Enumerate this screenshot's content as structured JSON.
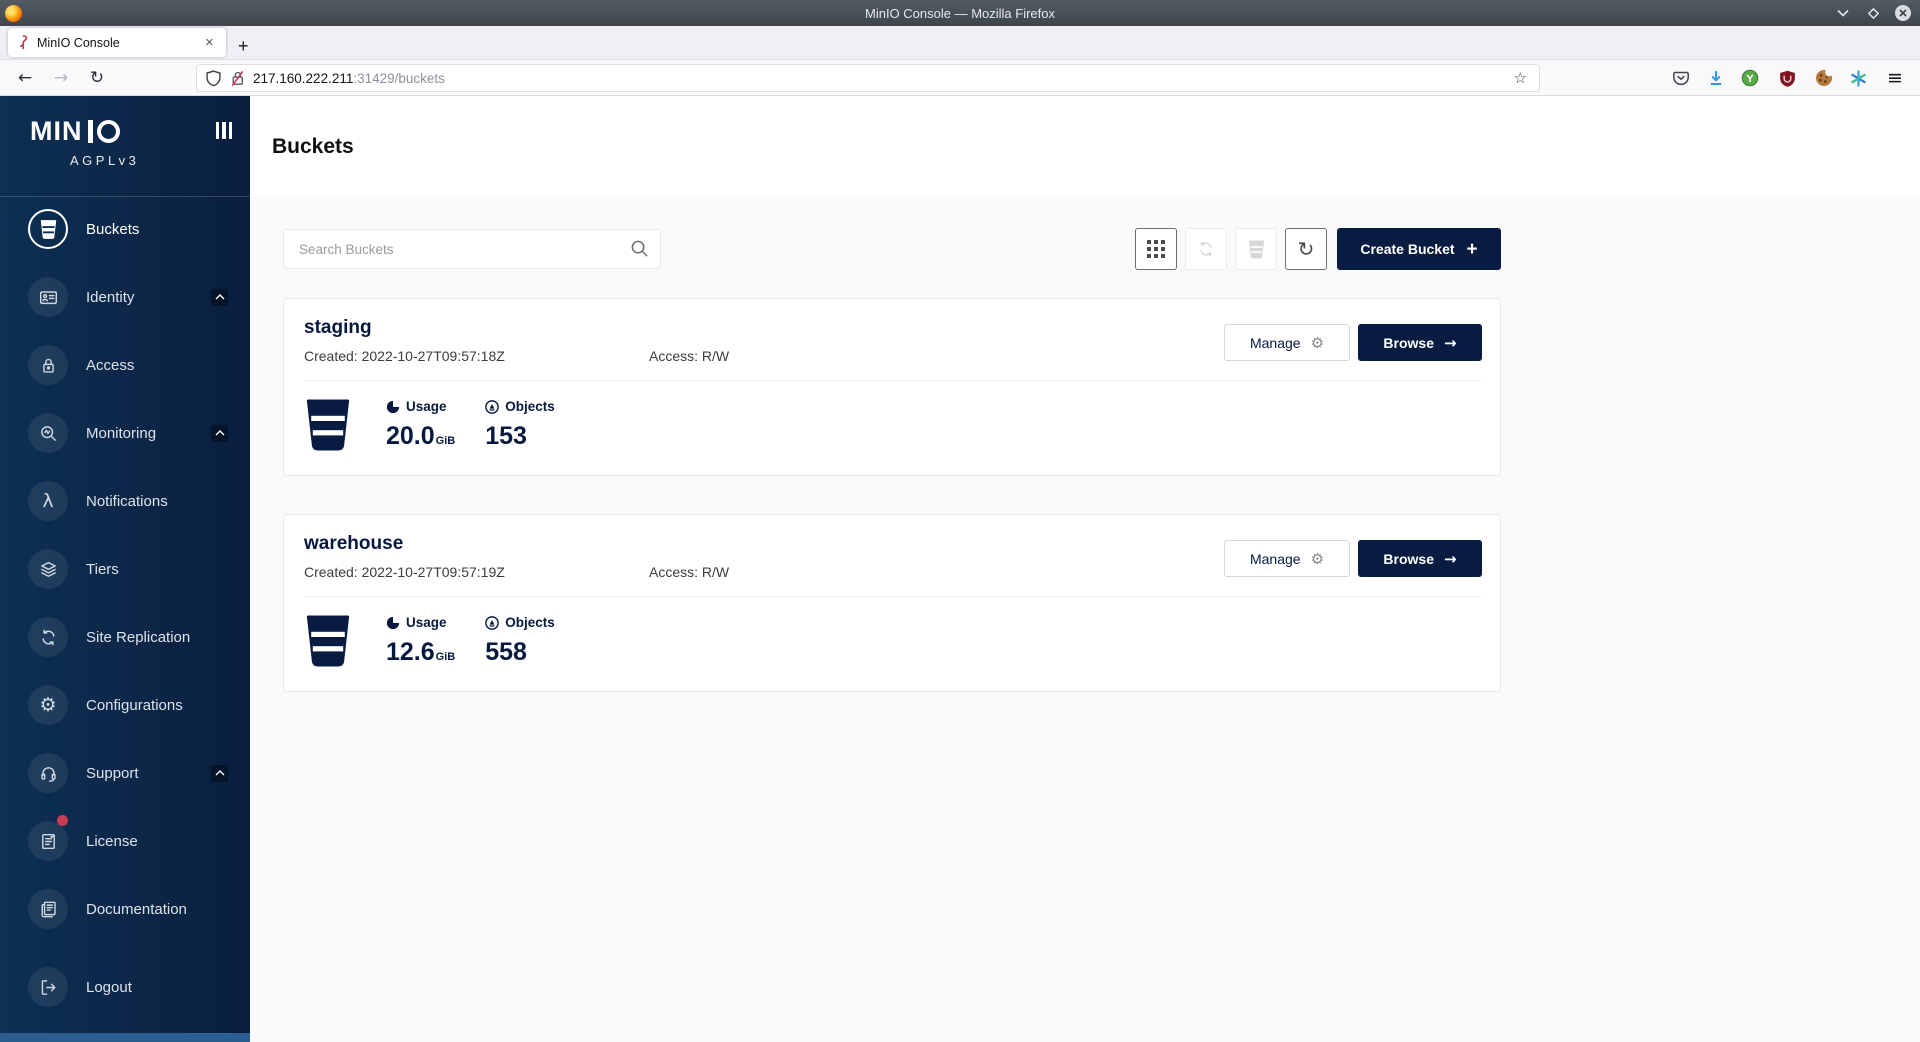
{
  "window": {
    "title": "MinIO Console — Mozilla Firefox"
  },
  "browser": {
    "tab_title": "MinIO Console",
    "tab_close": "✕",
    "new_tab": "+",
    "nav_back": "←",
    "nav_forward": "→",
    "nav_reload": "↻",
    "url_host": "217.160.222.211",
    "url_rest": ":31429/buckets",
    "bookmark_star": "☆",
    "menu_glyph": "≡"
  },
  "icons": {
    "gear": "⚙",
    "reload": "↻",
    "lambda": "λ"
  },
  "sidebar": {
    "logo_text": "MIN",
    "license_tag": "AGPLv3",
    "items": [
      {
        "label": "Buckets",
        "icon": "bucket",
        "active": true
      },
      {
        "label": "Identity",
        "icon": "id-card",
        "chevron": true
      },
      {
        "label": "Access",
        "icon": "lock"
      },
      {
        "label": "Monitoring",
        "icon": "monitor",
        "chevron": true
      },
      {
        "label": "Notifications",
        "icon": "lambda"
      },
      {
        "label": "Tiers",
        "icon": "layers"
      },
      {
        "label": "Site Replication",
        "icon": "replication"
      },
      {
        "label": "Configurations",
        "icon": "gear"
      },
      {
        "label": "Support",
        "icon": "headset",
        "chevron": true
      },
      {
        "label": "License",
        "icon": "license",
        "dot": true
      },
      {
        "label": "Documentation",
        "icon": "docs"
      },
      {
        "label": "Logout",
        "icon": "logout",
        "gap": true
      }
    ]
  },
  "page": {
    "title": "Buckets",
    "search_placeholder": "Search Buckets",
    "create_button": "Create Bucket",
    "create_plus": "+"
  },
  "buckets": [
    {
      "name": "staging",
      "created": "Created: 2022-10-27T09:57:18Z",
      "access": "Access: R/W",
      "manage_label": "Manage",
      "browse_label": "Browse",
      "browse_arrow": "→",
      "usage_label": "Usage",
      "usage_value": "20.0",
      "usage_unit": "GiB",
      "objects_label": "Objects",
      "objects_value": "153"
    },
    {
      "name": "warehouse",
      "created": "Created: 2022-10-27T09:57:19Z",
      "access": "Access: R/W",
      "manage_label": "Manage",
      "browse_label": "Browse",
      "browse_arrow": "→",
      "usage_label": "Usage",
      "usage_value": "12.6",
      "usage_unit": "GiB",
      "objects_label": "Objects",
      "objects_value": "558"
    }
  ],
  "colors": {
    "navy": "#081C42",
    "sidebar_from": "#0D3053",
    "sidebar_to": "#0A1E3E",
    "accent_red": "#C83B51",
    "download_blue": "#2E9DE3"
  }
}
